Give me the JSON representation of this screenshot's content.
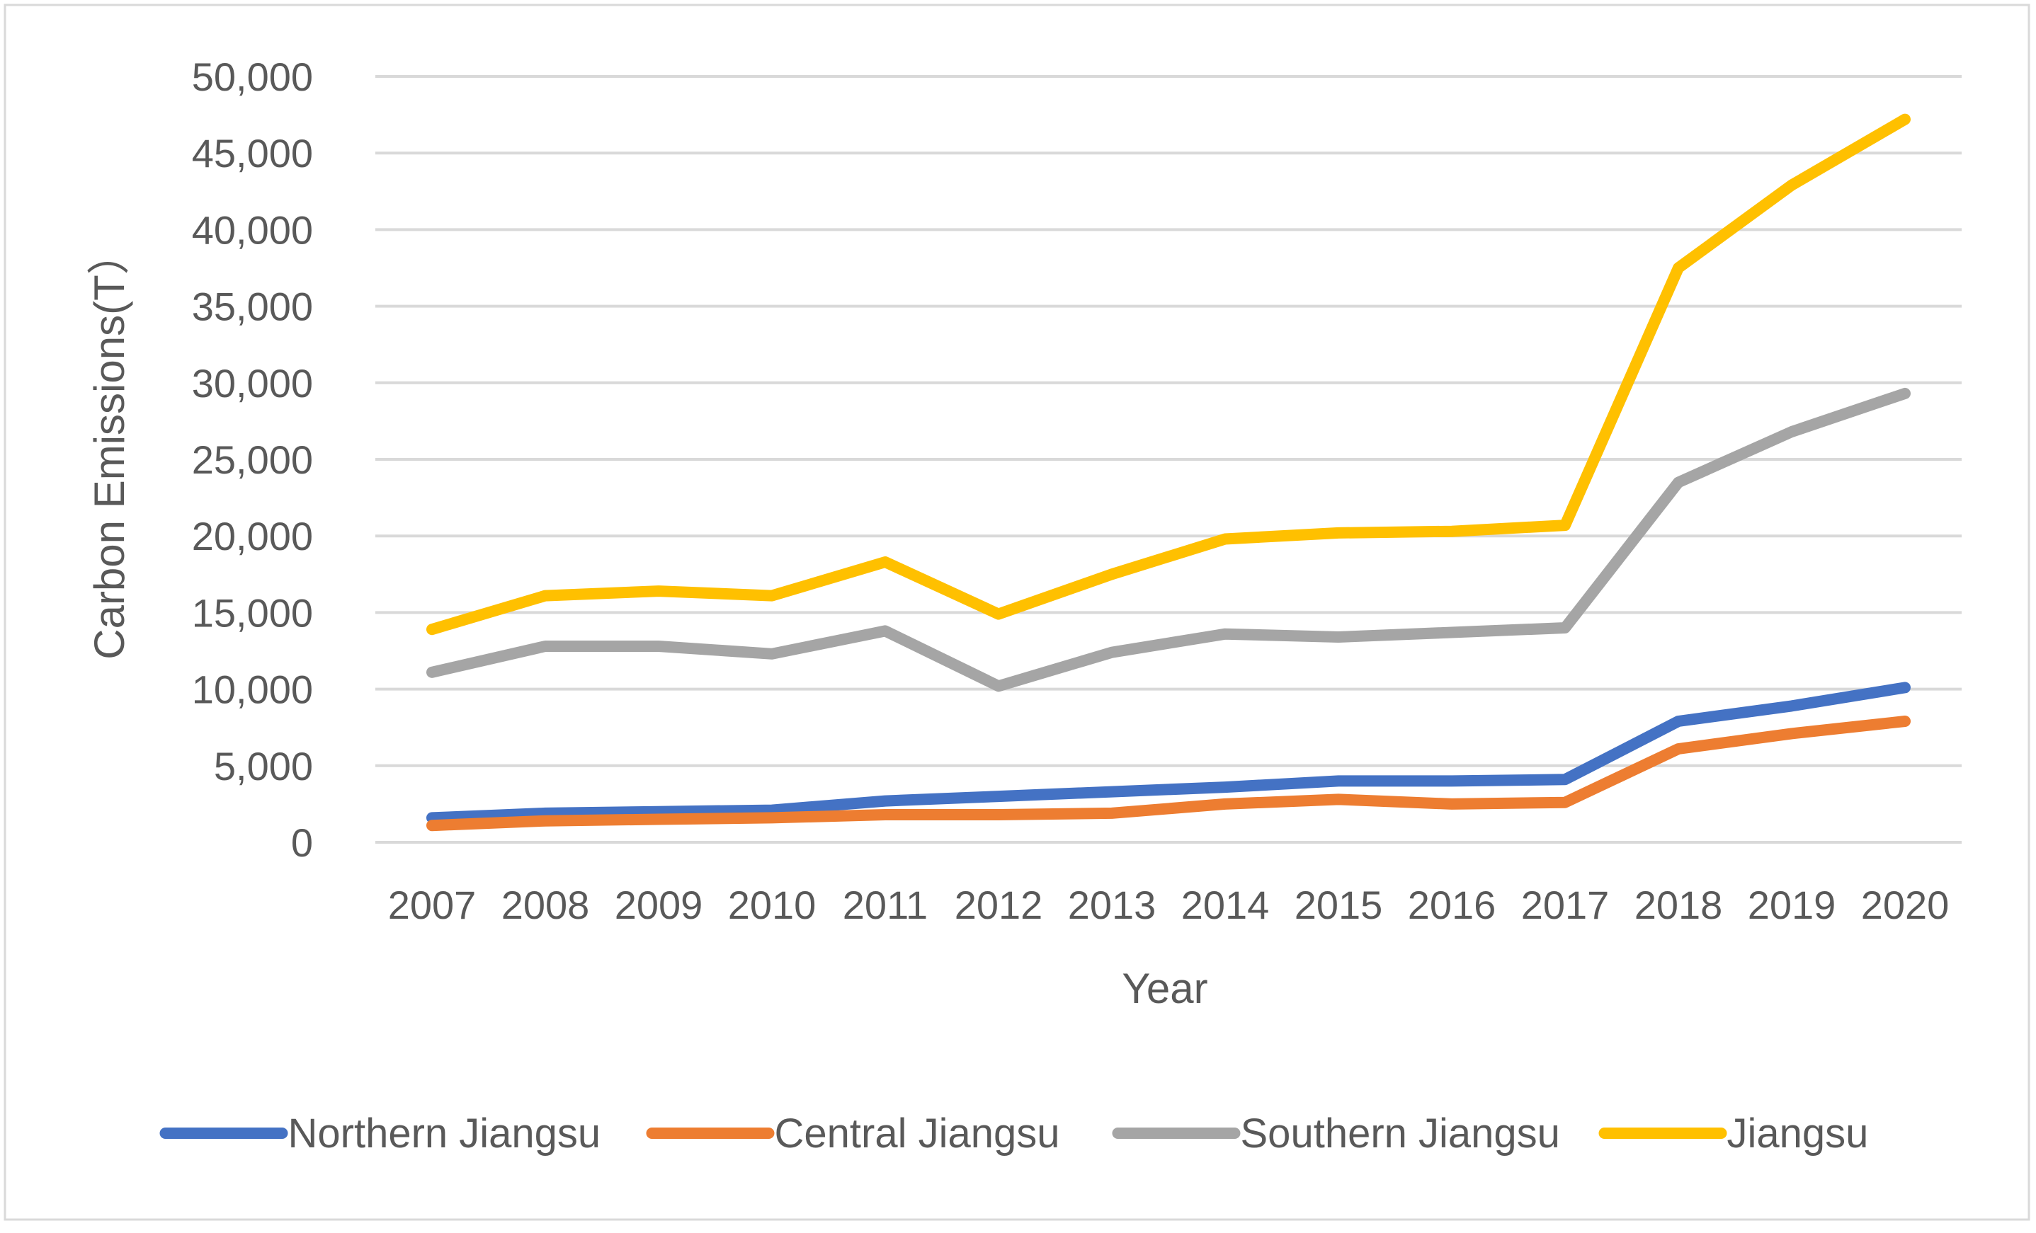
{
  "chart_data": {
    "type": "line",
    "title": "",
    "xlabel": "Year",
    "ylabel": "Carbon Emissions(T）",
    "ylim": [
      0,
      50000
    ],
    "yticks": [
      0,
      5000,
      10000,
      15000,
      20000,
      25000,
      30000,
      35000,
      40000,
      45000,
      50000
    ],
    "ytick_labels": [
      "0",
      "5,000",
      "10,000",
      "15,000",
      "20,000",
      "25,000",
      "30,000",
      "35,000",
      "40,000",
      "45,000",
      "50,000"
    ],
    "grid": true,
    "legend_position": "bottom",
    "categories": [
      "2007",
      "2008",
      "2009",
      "2010",
      "2011",
      "2012",
      "2013",
      "2014",
      "2015",
      "2016",
      "2017",
      "2018",
      "2019",
      "2020"
    ],
    "series": [
      {
        "name": "Northern Jiangsu",
        "color": "#4472C4",
        "values": [
          1600,
          1900,
          2000,
          2100,
          2700,
          3000,
          3300,
          3600,
          4000,
          4000,
          4100,
          7900,
          8900,
          10100
        ]
      },
      {
        "name": "Central Jiangsu",
        "color": "#ED7D31",
        "values": [
          1100,
          1400,
          1500,
          1600,
          1800,
          1800,
          1900,
          2500,
          2800,
          2500,
          2600,
          6100,
          7100,
          7900
        ]
      },
      {
        "name": "Southern Jiangsu",
        "color": "#A5A5A5",
        "values": [
          11100,
          12800,
          12800,
          12300,
          13800,
          10200,
          12400,
          13600,
          13400,
          13700,
          14000,
          23500,
          26800,
          29300
        ]
      },
      {
        "name": "Jiangsu",
        "color": "#FFC000",
        "values": [
          13900,
          16100,
          16400,
          16100,
          18300,
          14900,
          17500,
          19800,
          20200,
          20300,
          20700,
          37500,
          42900,
          47200
        ]
      }
    ]
  }
}
